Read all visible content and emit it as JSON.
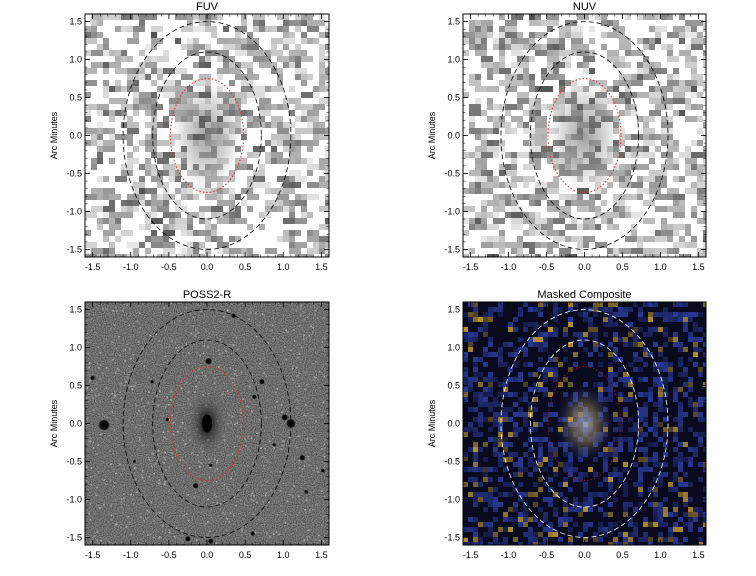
{
  "panels": [
    {
      "id": "fuv",
      "title": "FUV",
      "y_label": "Arc Minutes",
      "style": "uv"
    },
    {
      "id": "nuv",
      "title": "NUV",
      "y_label": "Arc Minutes",
      "style": "uv"
    },
    {
      "id": "poss2r",
      "title": "POSS2-R",
      "y_label": "Arc Minutes",
      "style": "optical"
    },
    {
      "id": "composite",
      "title": "Masked Composite",
      "y_label": "Arc Minutes",
      "style": "composite"
    }
  ],
  "axes": {
    "x_range": [
      -1.6,
      1.6
    ],
    "y_range": [
      -1.6,
      1.6
    ],
    "x_ticks": [
      "-1.5",
      "-1.0",
      "-0.5",
      "0.0",
      "0.5",
      "1.0",
      "1.5"
    ],
    "y_ticks": [
      "1.5",
      "1.0",
      "0.5",
      "0.0",
      "-0.5",
      "-1.0",
      "-1.5"
    ]
  },
  "ellipses": {
    "inner_red": {
      "rx_arcmin": 0.48,
      "ry_arcmin": 0.75,
      "color": "#e03030",
      "style": "dotted"
    },
    "middle": {
      "rx_arcmin": 0.95,
      "ry_arcmin": 1.1,
      "color": "#000000",
      "style": "dashed"
    },
    "outer": {
      "rx_arcmin": 1.1,
      "ry_arcmin": 1.5,
      "color": "#000000",
      "style": "dashed"
    }
  },
  "colors": {
    "composite_blue": "#2a3c9a",
    "composite_yellow": "#c8a030",
    "red_contour": "#e03030"
  }
}
